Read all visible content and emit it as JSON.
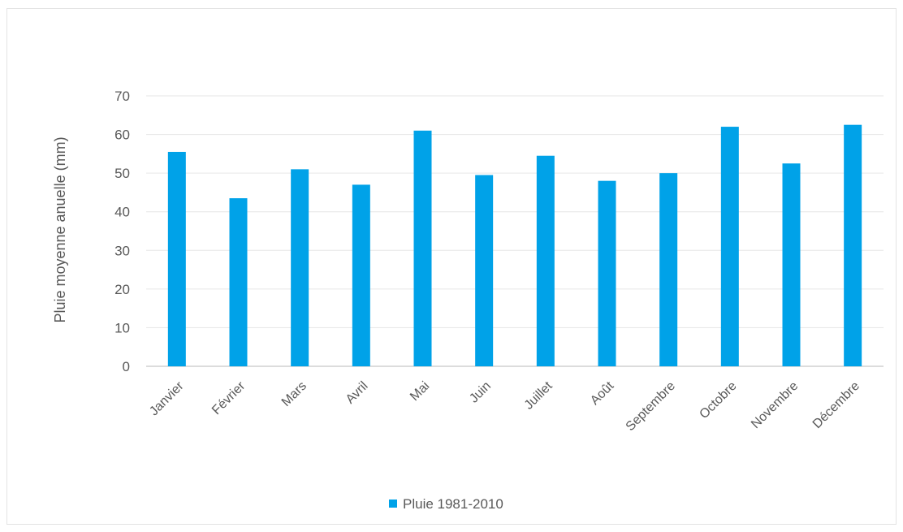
{
  "chart_data": {
    "type": "bar",
    "title": "",
    "xlabel": "",
    "ylabel": "Pluie moyenne anuelle (mm)",
    "categories": [
      "Janvier",
      "Février",
      "Mars",
      "Avril",
      "Mai",
      "Juin",
      "Juillet",
      "Août",
      "Septembre",
      "Octobre",
      "Novembre",
      "Décembre"
    ],
    "series": [
      {
        "name": "Pluie 1981-2010",
        "color": "#00a2e8",
        "values": [
          55.5,
          43.5,
          51,
          47,
          61,
          49.5,
          54.5,
          48,
          50,
          62,
          52.5,
          62.5
        ]
      }
    ],
    "ylim": [
      0,
      70
    ],
    "yticks": [
      0,
      10,
      20,
      30,
      40,
      50,
      60,
      70
    ],
    "grid": true,
    "legend_position": "bottom"
  }
}
